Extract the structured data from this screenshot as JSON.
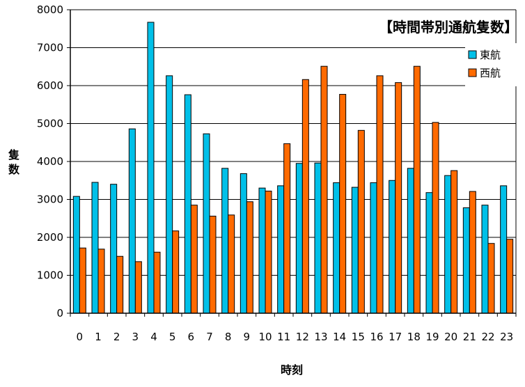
{
  "chart_data": {
    "type": "bar",
    "title": "【時間帯別通航隻数】",
    "xlabel": "時刻",
    "ylabel": "隻数",
    "categories": [
      "0",
      "1",
      "2",
      "3",
      "4",
      "5",
      "6",
      "7",
      "8",
      "9",
      "10",
      "11",
      "12",
      "13",
      "14",
      "15",
      "16",
      "17",
      "18",
      "19",
      "20",
      "21",
      "22",
      "23"
    ],
    "series": [
      {
        "name": "東航",
        "color": "#00C0E8",
        "values": [
          3080,
          3450,
          3400,
          4860,
          7670,
          6260,
          5760,
          4730,
          3820,
          3680,
          3300,
          3360,
          3950,
          3960,
          3440,
          3320,
          3440,
          3500,
          3820,
          3180,
          3630,
          2780,
          2850,
          3360
        ]
      },
      {
        "name": "西航",
        "color": "#FF6A00",
        "values": [
          1720,
          1690,
          1500,
          1360,
          1610,
          2170,
          2850,
          2560,
          2590,
          2940,
          3220,
          4470,
          6160,
          6510,
          5770,
          4820,
          6260,
          6080,
          6510,
          5030,
          3760,
          3210,
          1840,
          1950
        ]
      }
    ],
    "ylim": [
      0,
      8000
    ],
    "yticks": [
      "0",
      "1000",
      "2000",
      "3000",
      "4000",
      "5000",
      "6000",
      "7000",
      "8000"
    ],
    "grid": true,
    "legend_position": "top-right"
  }
}
